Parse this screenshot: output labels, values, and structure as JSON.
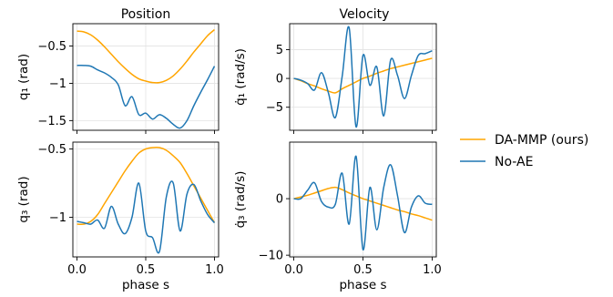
{
  "colors": {
    "da_mmp": "#FFA500",
    "no_ae": "#1F77B4"
  },
  "legend": {
    "placement": "right",
    "entries": [
      {
        "label": "DA-MMP (ours)",
        "color": "#FFA500"
      },
      {
        "label": "No-AE",
        "color": "#1F77B4"
      }
    ]
  },
  "chart_data": [
    {
      "type": "line",
      "column_title": "Position",
      "xlabel": "",
      "ylabel": "q₁ (rad)",
      "xlim": [
        -0.03,
        1.03
      ],
      "ylim": [
        -1.63,
        -0.2
      ],
      "yticks": [
        -1.5,
        -1.0,
        -0.5
      ],
      "xticks": [
        0.0,
        0.5,
        1.0
      ],
      "show_xticklabels": false,
      "grid": true,
      "x": [
        0.0,
        0.05,
        0.1,
        0.15,
        0.2,
        0.25,
        0.3,
        0.35,
        0.4,
        0.45,
        0.5,
        0.55,
        0.6,
        0.65,
        0.7,
        0.75,
        0.8,
        0.85,
        0.9,
        0.95,
        1.0
      ],
      "series": [
        {
          "name": "DA-MMP (ours)",
          "color": "#FFA500",
          "values": [
            -0.3,
            -0.31,
            -0.35,
            -0.42,
            -0.51,
            -0.61,
            -0.71,
            -0.8,
            -0.88,
            -0.94,
            -0.97,
            -0.99,
            -0.99,
            -0.96,
            -0.9,
            -0.81,
            -0.7,
            -0.58,
            -0.47,
            -0.36,
            -0.28
          ]
        },
        {
          "name": "No-AE",
          "color": "#1F77B4",
          "values": [
            -0.76,
            -0.76,
            -0.77,
            -0.82,
            -0.86,
            -0.92,
            -1.02,
            -1.3,
            -1.18,
            -1.42,
            -1.4,
            -1.48,
            -1.42,
            -1.47,
            -1.55,
            -1.6,
            -1.5,
            -1.3,
            -1.12,
            -0.95,
            -0.77
          ]
        }
      ]
    },
    {
      "type": "line",
      "column_title": "Velocity",
      "xlabel": "",
      "ylabel": "q̇₁ (rad/s)",
      "xlim": [
        -0.03,
        1.03
      ],
      "ylim": [
        -9.0,
        9.5
      ],
      "yticks": [
        -5,
        0,
        5
      ],
      "xticks": [
        0.0,
        0.5,
        1.0
      ],
      "show_xticklabels": false,
      "grid": true,
      "x": [
        0.0,
        0.05,
        0.1,
        0.15,
        0.2,
        0.25,
        0.3,
        0.35,
        0.4,
        0.45,
        0.5,
        0.55,
        0.6,
        0.65,
        0.7,
        0.75,
        0.8,
        0.85,
        0.9,
        0.95,
        1.0
      ],
      "series": [
        {
          "name": "DA-MMP (ours)",
          "color": "#FFA500",
          "values": [
            0.0,
            -0.4,
            -0.9,
            -1.3,
            -1.8,
            -2.2,
            -2.5,
            -1.8,
            -1.2,
            -0.6,
            0.0,
            0.4,
            0.9,
            1.3,
            1.7,
            2.0,
            2.3,
            2.6,
            2.9,
            3.2,
            3.5
          ]
        },
        {
          "name": "No-AE",
          "color": "#1F77B4",
          "values": [
            0.0,
            -0.3,
            -0.9,
            -2.0,
            1.0,
            -2.5,
            -6.8,
            0.4,
            8.8,
            -8.4,
            4.0,
            -1.2,
            2.0,
            -6.5,
            3.2,
            0.5,
            -3.5,
            0.5,
            4.0,
            4.3,
            4.8
          ]
        }
      ]
    },
    {
      "type": "line",
      "column_title": "",
      "xlabel": "phase s",
      "ylabel": "q₃ (rad)",
      "xlim": [
        -0.03,
        1.03
      ],
      "ylim": [
        -1.29,
        -0.45
      ],
      "yticks": [
        -1.0,
        -0.5
      ],
      "xticks": [
        0.0,
        0.5,
        1.0
      ],
      "xticklabels": [
        "0.0",
        "0.5",
        "1.0"
      ],
      "show_xticklabels": true,
      "grid": true,
      "x": [
        0.0,
        0.05,
        0.1,
        0.15,
        0.2,
        0.25,
        0.3,
        0.35,
        0.4,
        0.45,
        0.5,
        0.55,
        0.6,
        0.65,
        0.7,
        0.75,
        0.8,
        0.85,
        0.9,
        0.95,
        1.0
      ],
      "series": [
        {
          "name": "DA-MMP (ours)",
          "color": "#FFA500",
          "values": [
            -1.05,
            -1.05,
            -1.03,
            -0.98,
            -0.9,
            -0.82,
            -0.74,
            -0.66,
            -0.59,
            -0.53,
            -0.5,
            -0.49,
            -0.49,
            -0.51,
            -0.55,
            -0.6,
            -0.68,
            -0.77,
            -0.86,
            -0.95,
            -1.04
          ]
        },
        {
          "name": "No-AE",
          "color": "#1F77B4",
          "values": [
            -1.03,
            -1.04,
            -1.05,
            -1.02,
            -1.08,
            -0.92,
            -1.05,
            -1.12,
            -1.0,
            -0.75,
            -1.1,
            -1.15,
            -1.25,
            -0.85,
            -0.75,
            -1.1,
            -0.83,
            -0.76,
            -0.88,
            -0.98,
            -1.04
          ]
        }
      ]
    },
    {
      "type": "line",
      "column_title": "",
      "xlabel": "phase s",
      "ylabel": "q̇₃ (rad/s)",
      "xlim": [
        -0.03,
        1.03
      ],
      "ylim": [
        -10.3,
        10.0
      ],
      "yticks": [
        -10,
        0
      ],
      "xticks": [
        0.0,
        0.5,
        1.0
      ],
      "xticklabels": [
        "0.0",
        "0.5",
        "1.0"
      ],
      "show_xticklabels": true,
      "grid": true,
      "x": [
        0.0,
        0.05,
        0.1,
        0.15,
        0.2,
        0.25,
        0.3,
        0.35,
        0.4,
        0.45,
        0.5,
        0.55,
        0.6,
        0.65,
        0.7,
        0.75,
        0.8,
        0.85,
        0.9,
        0.95,
        1.0
      ],
      "series": [
        {
          "name": "DA-MMP (ours)",
          "color": "#FFA500",
          "values": [
            0.0,
            0.3,
            0.6,
            1.0,
            1.4,
            1.8,
            2.0,
            1.6,
            1.0,
            0.5,
            0.0,
            -0.4,
            -0.8,
            -1.2,
            -1.6,
            -2.0,
            -2.3,
            -2.7,
            -3.0,
            -3.4,
            -3.8
          ]
        },
        {
          "name": "No-AE",
          "color": "#1F77B4",
          "values": [
            0.0,
            0.0,
            1.5,
            2.8,
            -0.5,
            -1.5,
            -1.0,
            4.5,
            -4.5,
            7.5,
            -9.0,
            2.0,
            -5.5,
            2.0,
            6.0,
            0.5,
            -6.0,
            -1.5,
            0.5,
            -0.8,
            -1.0
          ]
        }
      ]
    }
  ]
}
